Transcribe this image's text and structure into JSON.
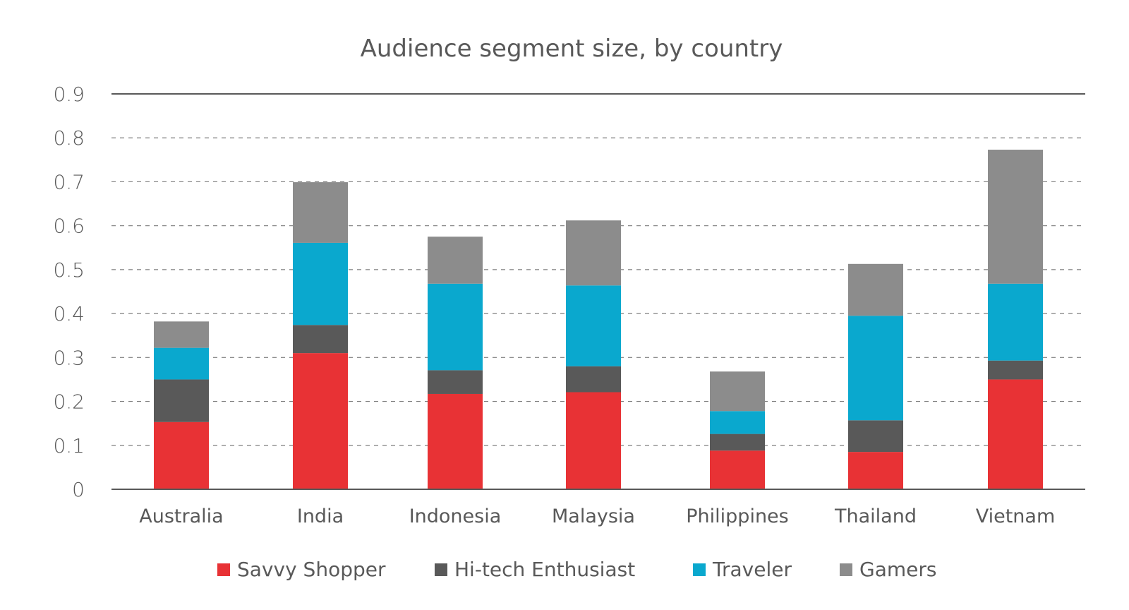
{
  "chart_data": {
    "type": "bar",
    "stacked": true,
    "title": "Audience segment size, by country",
    "xlabel": "",
    "ylabel": "",
    "ylim": [
      0,
      0.9
    ],
    "yticks": [
      "0",
      "0.1",
      "0.2",
      "0.3",
      "0.4",
      "0.5",
      "0.6",
      "0.7",
      "0.8",
      "0.9"
    ],
    "grid": "horizontal dashed",
    "legend_position": "bottom",
    "categories": [
      "Australia",
      "India",
      "Indonesia",
      "Malaysia",
      "Philippines",
      "Thailand",
      "Vietnam"
    ],
    "series": [
      {
        "name": "Savvy Shopper",
        "color": "#E83235",
        "values": [
          0.153,
          0.31,
          0.217,
          0.221,
          0.088,
          0.085,
          0.25
        ]
      },
      {
        "name": "Hi-tech Enthusiast",
        "color": "#595959",
        "values": [
          0.097,
          0.064,
          0.054,
          0.059,
          0.038,
          0.072,
          0.043
        ]
      },
      {
        "name": "Traveler",
        "color": "#0AA8CE",
        "values": [
          0.072,
          0.187,
          0.197,
          0.184,
          0.052,
          0.238,
          0.175
        ]
      },
      {
        "name": "Gamers",
        "color": "#8C8C8C",
        "values": [
          0.06,
          0.138,
          0.107,
          0.148,
          0.09,
          0.118,
          0.305
        ]
      }
    ]
  }
}
